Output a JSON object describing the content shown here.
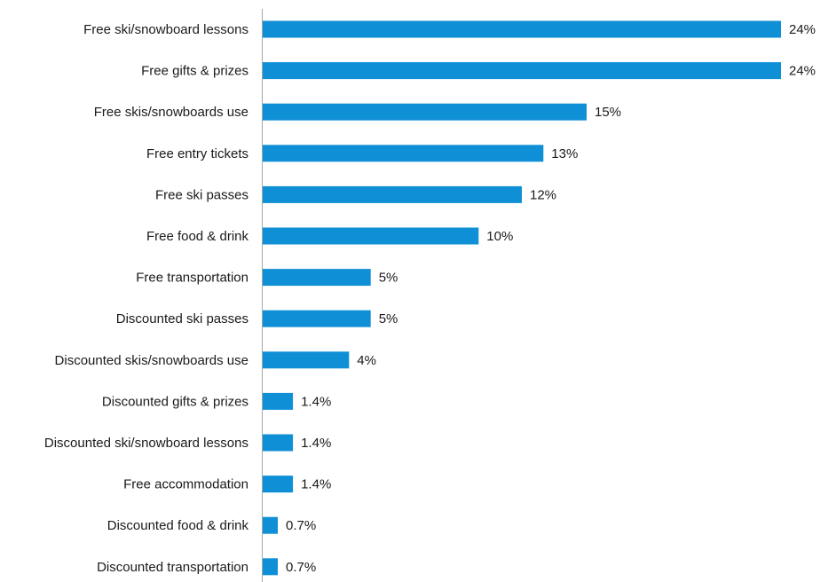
{
  "chart_data": {
    "type": "bar",
    "orientation": "horizontal",
    "categories": [
      "Free ski/snowboard lessons",
      "Free gifts & prizes",
      "Free skis/snowboards use",
      "Free entry tickets",
      "Free ski passes",
      "Free food & drink",
      "Free transportation",
      "Discounted ski passes",
      "Discounted skis/snowboards use",
      "Discounted gifts & prizes",
      "Discounted ski/snowboard lessons",
      "Free accommodation",
      "Discounted food & drink",
      "Discounted transportation"
    ],
    "values": [
      24,
      24,
      15,
      13,
      12,
      10,
      5,
      5,
      4,
      1.4,
      1.4,
      1.4,
      0.7,
      0.7
    ],
    "value_labels": [
      "24%",
      "24%",
      "15%",
      "13%",
      "12%",
      "10%",
      "5%",
      "5%",
      "4%",
      "1.4%",
      "1.4%",
      "1.4%",
      "0.7%",
      "0.7%"
    ],
    "bar_color": "#0f8fd6",
    "grid": false,
    "legend": "none"
  }
}
